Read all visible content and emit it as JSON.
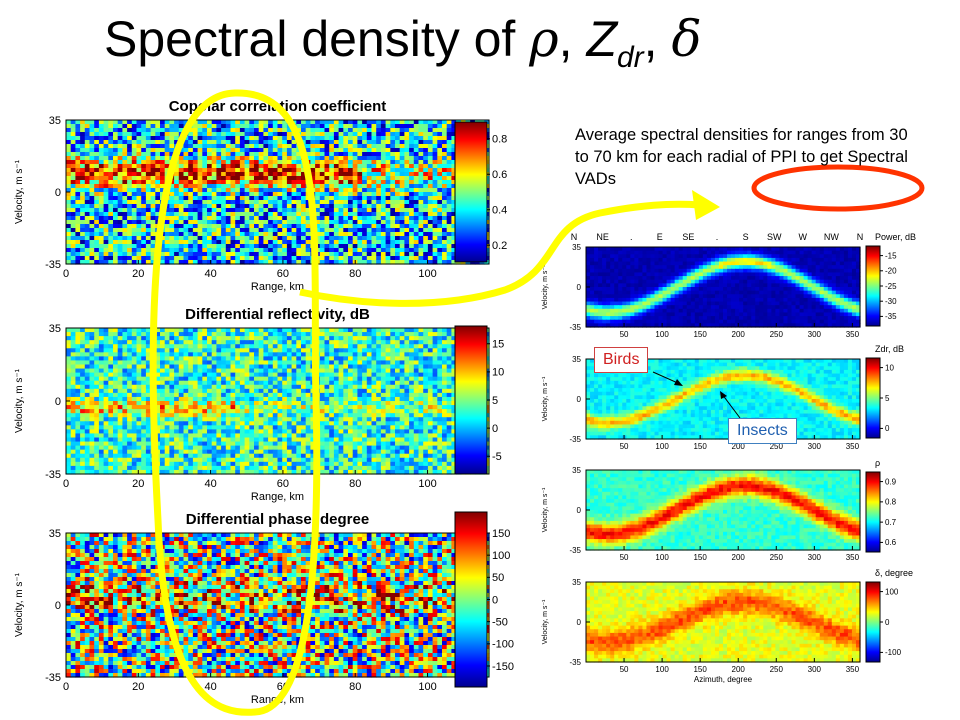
{
  "slide": {
    "title_main": "Spectral density of ",
    "title_rho": "ρ",
    "title_comma1": ", ",
    "title_z": "Z",
    "title_sub": "dr",
    "title_comma2": ", ",
    "title_delta": "δ",
    "note": "Average spectral densities for ranges from 30 to 70 km for each radial of PPI to get Spectral VADs",
    "callout_birds": "Birds",
    "callout_insects": "Insects",
    "colors": {
      "highlight_yellow": "#ffff00",
      "highlight_red": "#ff3300"
    }
  },
  "chart_data": [
    {
      "type": "heatmap",
      "title": "Copolar correlation coefficient",
      "xlabel": "Range, km",
      "ylabel": "Velocity, m s⁻¹",
      "xlim": [
        0,
        117
      ],
      "ylim": [
        -35,
        35
      ],
      "xticks": [
        "0",
        "20",
        "40",
        "60",
        "80",
        "100"
      ],
      "yticks": [
        "35",
        "0",
        "-35"
      ],
      "colorbar": {
        "label": "",
        "ticks": [
          "0.8",
          "0.6",
          "0.4",
          "0.2"
        ]
      }
    },
    {
      "type": "heatmap",
      "title": "Differential reflectivity, dB",
      "xlabel": "Range, km",
      "ylabel": "Velocity, m s⁻¹",
      "xlim": [
        0,
        117
      ],
      "ylim": [
        -35,
        35
      ],
      "xticks": [
        "0",
        "20",
        "40",
        "60",
        "80",
        "100"
      ],
      "yticks": [
        "35",
        "0",
        "-35"
      ],
      "colorbar": {
        "label": "",
        "ticks": [
          "15",
          "10",
          "5",
          "0",
          "-5"
        ]
      }
    },
    {
      "type": "heatmap",
      "title": "Differential phase, degree",
      "xlabel": "Range, km",
      "ylabel": "Velocity, m s⁻¹",
      "xlim": [
        0,
        117
      ],
      "ylim": [
        -35,
        35
      ],
      "xticks": [
        "0",
        "20",
        "40",
        "60",
        "80",
        "100"
      ],
      "yticks": [
        "35",
        "0",
        "-35"
      ],
      "colorbar": {
        "label": "",
        "ticks": [
          "150",
          "100",
          "50",
          "0",
          "-50",
          "-100",
          "-150"
        ]
      }
    },
    {
      "type": "heatmap",
      "title": "",
      "xlabel": "",
      "ylabel": "Velocity, m s⁻¹",
      "xlim": [
        0,
        360
      ],
      "ylim": [
        -35,
        35
      ],
      "xticks": [
        "50",
        "100",
        "150",
        "200",
        "250",
        "300",
        "350"
      ],
      "yticks": [
        "35",
        "0",
        "-35"
      ],
      "top_labels": [
        "N",
        "NE",
        ".",
        "E",
        "SE",
        ".",
        "S",
        "SW",
        "W",
        "NW",
        "N"
      ],
      "colorbar": {
        "label": "Power, dB",
        "ticks": [
          "-15",
          "-20",
          "-25",
          "-30",
          "-35"
        ]
      }
    },
    {
      "type": "heatmap",
      "title": "",
      "xlabel": "",
      "ylabel": "Velocity, m s⁻¹",
      "xlim": [
        0,
        360
      ],
      "ylim": [
        -35,
        35
      ],
      "xticks": [
        "50",
        "100",
        "150",
        "200",
        "250",
        "300",
        "350"
      ],
      "yticks": [
        "35",
        "0",
        "-35"
      ],
      "colorbar": {
        "label": "Zdr, dB",
        "ticks": [
          "10",
          "5",
          "0"
        ]
      }
    },
    {
      "type": "heatmap",
      "title": "",
      "xlabel": "",
      "ylabel": "Velocity, m s⁻¹",
      "xlim": [
        0,
        360
      ],
      "ylim": [
        -35,
        35
      ],
      "xticks": [
        "50",
        "100",
        "150",
        "200",
        "250",
        "300",
        "350"
      ],
      "yticks": [
        "35",
        "0",
        "-35"
      ],
      "colorbar": {
        "label": "ρ",
        "ticks": [
          "0.9",
          "0.8",
          "0.7",
          "0.6"
        ]
      }
    },
    {
      "type": "heatmap",
      "title": "",
      "xlabel": "Azimuth, degree",
      "ylabel": "Velocity, m s⁻¹",
      "xlim": [
        0,
        360
      ],
      "ylim": [
        -35,
        35
      ],
      "xticks": [
        "50",
        "100",
        "150",
        "200",
        "250",
        "300",
        "350"
      ],
      "yticks": [
        "35",
        "0",
        "-35"
      ],
      "colorbar": {
        "label": "δ, degree",
        "ticks": [
          "100",
          "0",
          "-100"
        ]
      }
    }
  ]
}
